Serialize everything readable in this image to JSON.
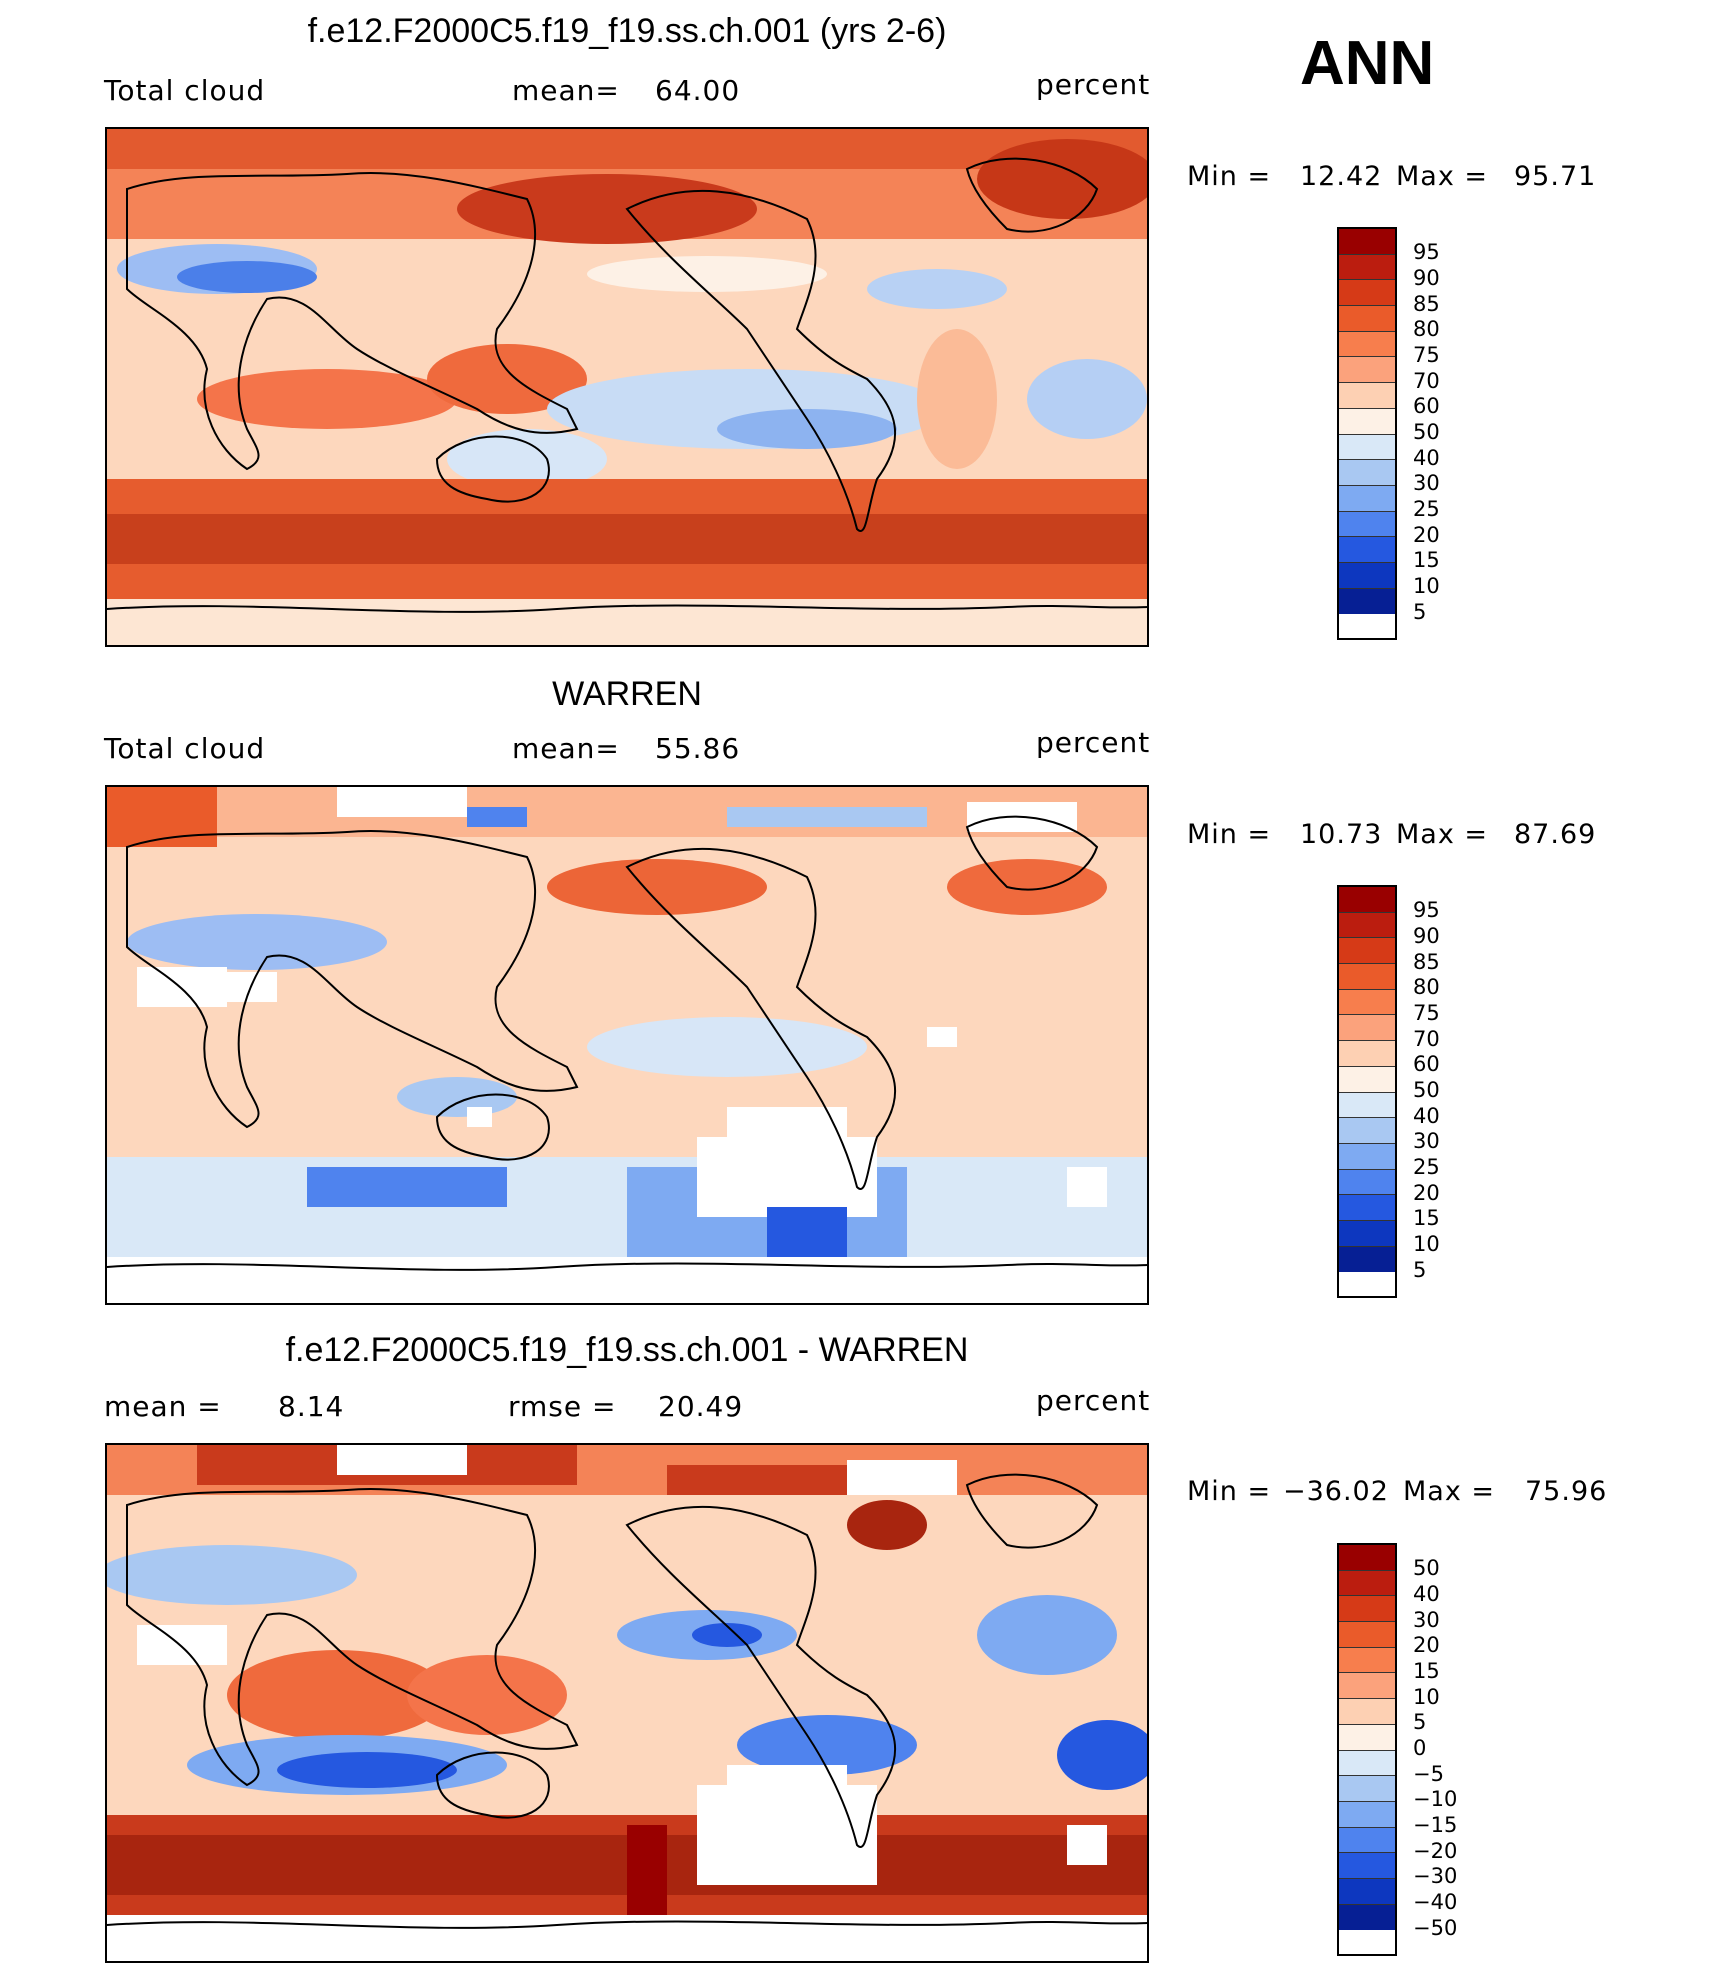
{
  "season_label": "ANN",
  "panels": [
    {
      "title": "f.e12.F2000C5.f19_f19.ss.ch.001 (yrs 2-6)",
      "left_label": "Total cloud",
      "center_label": "mean=",
      "center_value": "64.00",
      "units": "percent",
      "min_label": "Min =",
      "min_value": "12.42",
      "max_label": "Max =",
      "max_value": "95.71",
      "levels": [
        "95",
        "90",
        "85",
        "80",
        "75",
        "70",
        "60",
        "50",
        "40",
        "30",
        "25",
        "20",
        "15",
        "10",
        "5"
      ]
    },
    {
      "title": "WARREN",
      "left_label": "Total cloud",
      "center_label": "mean=",
      "center_value": "55.86",
      "units": "percent",
      "min_label": "Min =",
      "min_value": "10.73",
      "max_label": "Max =",
      "max_value": "87.69",
      "levels": [
        "95",
        "90",
        "85",
        "80",
        "75",
        "70",
        "60",
        "50",
        "40",
        "30",
        "25",
        "20",
        "15",
        "10",
        "5"
      ]
    },
    {
      "title": "f.e12.F2000C5.f19_f19.ss.ch.001 - WARREN",
      "left_label": "mean =",
      "left_value": "8.14",
      "center_label": "rmse =",
      "center_value": "20.49",
      "units": "percent",
      "min_label": "Min =",
      "min_value": "−36.02",
      "max_label": "Max =",
      "max_value": "75.96",
      "levels": [
        "50",
        "40",
        "30",
        "20",
        "15",
        "10",
        "5",
        "0",
        "−5",
        "−10",
        "−15",
        "−20",
        "−30",
        "−40",
        "−50"
      ]
    }
  ],
  "colorbar_colors": [
    "#990000",
    "#bb1d0f",
    "#d63a17",
    "#ea5b2a",
    "#f77e4d",
    "#fba27c",
    "#fdd0b3",
    "#fdf1e6",
    "#d9e8f7",
    "#a9c8f2",
    "#7eaaf2",
    "#4f83ee",
    "#2558e0",
    "#0d37bf",
    "#061f94"
  ]
}
